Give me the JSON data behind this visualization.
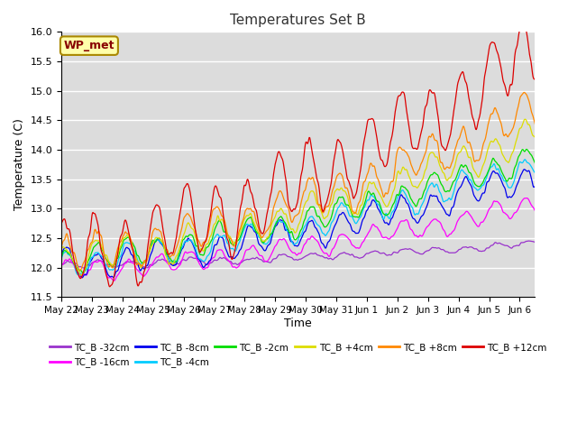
{
  "title": "Temperatures Set B",
  "xlabel": "Time",
  "ylabel": "Temperature (C)",
  "ylim": [
    11.5,
    16.0
  ],
  "bg_color": "#dcdcdc",
  "annotation_text": "WP_met",
  "series": [
    {
      "label": "TC_B -32cm",
      "color": "#9933cc",
      "depth_idx": 0
    },
    {
      "label": "TC_B -16cm",
      "color": "#ff00ff",
      "depth_idx": 1
    },
    {
      "label": "TC_B -8cm",
      "color": "#0000ee",
      "depth_idx": 2
    },
    {
      "label": "TC_B -4cm",
      "color": "#00ccff",
      "depth_idx": 3
    },
    {
      "label": "TC_B -2cm",
      "color": "#00dd00",
      "depth_idx": 4
    },
    {
      "label": "TC_B +4cm",
      "color": "#dddd00",
      "depth_idx": 5
    },
    {
      "label": "TC_B +8cm",
      "color": "#ff8800",
      "depth_idx": 6
    },
    {
      "label": "TC_B +12cm",
      "color": "#dd0000",
      "depth_idx": 7
    }
  ],
  "n_points": 960,
  "total_days": 15.5,
  "tick_labels": [
    "May 22",
    "May 23",
    "May 24",
    "May 25",
    "May 26",
    "May 27",
    "May 28",
    "May 29",
    "May 30",
    "May 31",
    "Jun 1",
    "Jun 2",
    "Jun 3",
    "Jun 4",
    "Jun 5",
    "Jun 6"
  ],
  "tick_positions": [
    0,
    1,
    2,
    3,
    4,
    5,
    6,
    7,
    8,
    9,
    10,
    11,
    12,
    13,
    14,
    15
  ]
}
